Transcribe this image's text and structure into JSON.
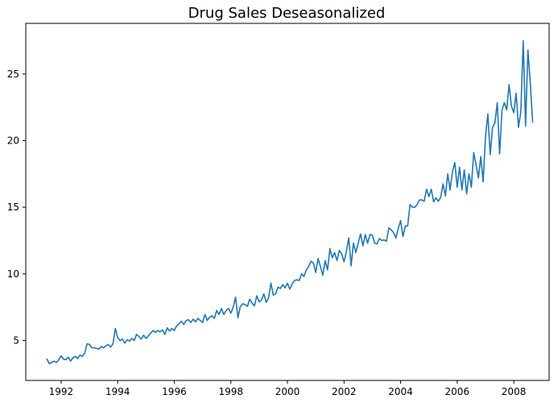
{
  "chart_data": {
    "type": "line",
    "title": "Drug Sales Deseasonalized",
    "xlabel": "",
    "ylabel": "",
    "xlim": [
      1990.75,
      2009.25
    ],
    "ylim": [
      2.0,
      28.8
    ],
    "x_ticks": [
      1992,
      1994,
      1996,
      1998,
      2000,
      2002,
      2004,
      2006,
      2008
    ],
    "x_tick_labels": [
      "1992",
      "1994",
      "1996",
      "1998",
      "2000",
      "2002",
      "2004",
      "2006",
      "2008"
    ],
    "y_ticks": [
      5,
      10,
      15,
      20,
      25
    ],
    "y_tick_labels": [
      "5",
      "10",
      "15",
      "20",
      "25"
    ],
    "grid": false,
    "series": [
      {
        "name": "Drug Sales Deseasonalized",
        "color": "#1f77b4",
        "x_start": 1991.5,
        "x_step": 0.0833333,
        "values": [
          3.6,
          3.25,
          3.35,
          3.45,
          3.35,
          3.55,
          3.85,
          3.6,
          3.55,
          3.75,
          3.45,
          3.7,
          3.8,
          3.65,
          3.9,
          3.8,
          4.05,
          4.75,
          4.7,
          4.45,
          4.45,
          4.4,
          4.35,
          4.55,
          4.45,
          4.6,
          4.7,
          4.5,
          4.75,
          5.9,
          5.2,
          5.0,
          5.1,
          4.8,
          5.05,
          4.95,
          5.15,
          5.0,
          5.45,
          5.3,
          5.1,
          5.4,
          5.15,
          5.35,
          5.55,
          5.75,
          5.6,
          5.75,
          5.65,
          5.8,
          5.45,
          5.95,
          5.7,
          5.9,
          5.75,
          6.1,
          6.25,
          6.45,
          6.2,
          6.5,
          6.55,
          6.35,
          6.6,
          6.4,
          6.65,
          6.5,
          6.35,
          6.95,
          6.5,
          6.75,
          6.85,
          6.65,
          7.25,
          6.95,
          7.4,
          6.95,
          7.25,
          7.4,
          7.05,
          7.5,
          8.25,
          6.7,
          7.55,
          7.75,
          7.7,
          7.55,
          8.1,
          7.8,
          7.6,
          8.35,
          7.9,
          8.05,
          8.5,
          7.85,
          8.2,
          9.3,
          8.4,
          8.5,
          9.0,
          8.9,
          9.2,
          8.95,
          9.3,
          8.85,
          9.25,
          9.5,
          9.55,
          9.5,
          10.0,
          9.8,
          10.3,
          10.55,
          10.95,
          10.8,
          10.1,
          11.15,
          10.55,
          9.9,
          11.0,
          10.3,
          11.9,
          11.2,
          11.6,
          11.0,
          11.75,
          11.5,
          10.9,
          11.7,
          12.7,
          10.6,
          12.3,
          11.6,
          12.3,
          13.0,
          12.1,
          12.95,
          12.3,
          12.95,
          12.9,
          12.3,
          12.25,
          12.65,
          12.5,
          12.55,
          12.45,
          13.45,
          13.3,
          13.1,
          12.7,
          13.4,
          14.0,
          12.8,
          13.6,
          13.6,
          15.2,
          15.0,
          15.0,
          15.2,
          15.55,
          15.55,
          15.45,
          16.35,
          15.8,
          16.35,
          15.4,
          15.7,
          15.45,
          15.75,
          16.75,
          15.85,
          17.5,
          16.3,
          17.7,
          18.35,
          16.5,
          18.0,
          16.3,
          17.8,
          16.0,
          17.5,
          16.5,
          19.1,
          18.2,
          17.2,
          18.8,
          16.9,
          20.3,
          22.0,
          18.95,
          21.0,
          21.35,
          22.85,
          19.0,
          22.3,
          22.85,
          22.3,
          24.2,
          22.6,
          22.1,
          23.55,
          21.0,
          22.2,
          27.5,
          21.1,
          26.8,
          24.3,
          21.4
        ]
      }
    ]
  }
}
